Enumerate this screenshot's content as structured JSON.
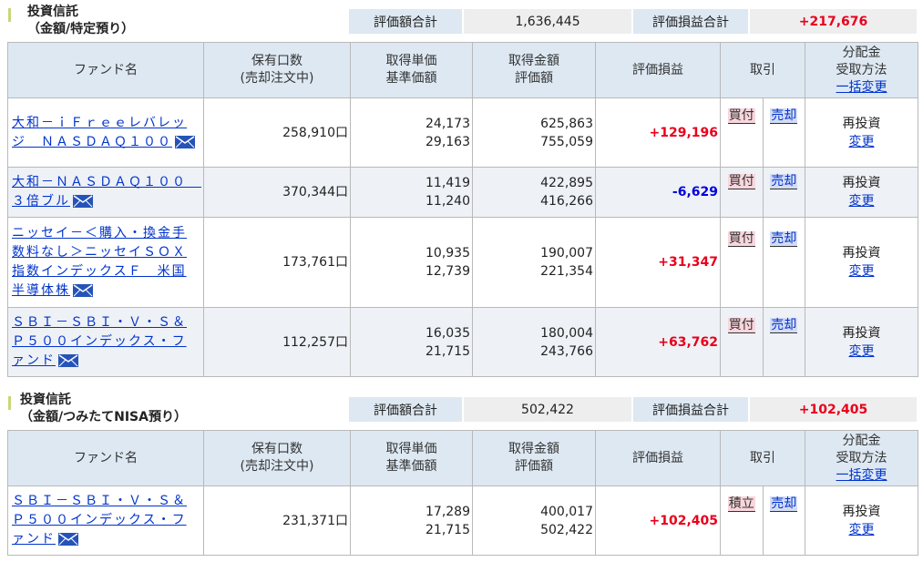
{
  "sections": [
    {
      "title": "投資信託",
      "subtitle": "（金額/特定預り）",
      "summary": {
        "eval_label": "評価額合計",
        "eval_value": "1,636,445",
        "gain_label": "評価損益合計",
        "gain_value": "+217,676"
      },
      "headers": {
        "fund": "ファンド名",
        "units_1": "保有口数",
        "units_2": "(売却注文中)",
        "price_1": "取得単価",
        "price_2": "基準価額",
        "amount_1": "取得金額",
        "amount_2": "評価額",
        "gain": "評価損益",
        "trade": "取引",
        "dist_1": "分配金",
        "dist_2": "受取方法",
        "dist_3": "一括変更"
      },
      "rows": [
        {
          "name": "大和－ｉＦｒｅｅレバレッジ　ＮＡＳＤＡＱ１００",
          "units": "258,910口",
          "cost_price": "24,173",
          "base_price": "29,163",
          "cost_amount": "625,863",
          "eval_amount": "755,059",
          "gain": "+129,196",
          "buy": "買付",
          "sell": "売却",
          "method": "再投資",
          "change": "変更"
        },
        {
          "name": "大和－ＮＡＳＤＡＱ１００　３倍ブル",
          "units": "370,344口",
          "cost_price": "11,419",
          "base_price": "11,240",
          "cost_amount": "422,895",
          "eval_amount": "416,266",
          "gain": "-6,629",
          "buy": "買付",
          "sell": "売却",
          "method": "再投資",
          "change": "変更"
        },
        {
          "name": "ニッセイ－＜購入・換金手数料なし＞ニッセイＳＯＸ指数インデックスＦ　米国半導体株",
          "units": "173,761口",
          "cost_price": "10,935",
          "base_price": "12,739",
          "cost_amount": "190,007",
          "eval_amount": "221,354",
          "gain": "+31,347",
          "buy": "買付",
          "sell": "売却",
          "method": "再投資",
          "change": "変更"
        },
        {
          "name": "ＳＢＩ－ＳＢＩ・Ｖ・Ｓ＆Ｐ５００インデックス・ファンド",
          "units": "112,257口",
          "cost_price": "16,035",
          "base_price": "21,715",
          "cost_amount": "180,004",
          "eval_amount": "243,766",
          "gain": "+63,762",
          "buy": "買付",
          "sell": "売却",
          "method": "再投資",
          "change": "変更"
        }
      ]
    },
    {
      "title": "投資信託",
      "subtitle": "（金額/つみたてNISA預り）",
      "summary": {
        "eval_label": "評価額合計",
        "eval_value": "502,422",
        "gain_label": "評価損益合計",
        "gain_value": "+102,405"
      },
      "headers": {
        "fund": "ファンド名",
        "units_1": "保有口数",
        "units_2": "(売却注文中)",
        "price_1": "取得単価",
        "price_2": "基準価額",
        "amount_1": "取得金額",
        "amount_2": "評価額",
        "gain": "評価損益",
        "trade": "取引",
        "dist_1": "分配金",
        "dist_2": "受取方法",
        "dist_3": "一括変更"
      },
      "rows": [
        {
          "name": "ＳＢＩ－ＳＢＩ・Ｖ・Ｓ＆Ｐ５００インデックス・ファンド",
          "units": "231,371口",
          "cost_price": "17,289",
          "base_price": "21,715",
          "cost_amount": "400,017",
          "eval_amount": "502,422",
          "gain": "+102,405",
          "buy": "積立",
          "sell": "売却",
          "method": "再投資",
          "change": "変更"
        }
      ]
    }
  ],
  "icons": {
    "mail": "mail-icon"
  },
  "colors": {
    "positive": "#e8001c",
    "negative": "#0000dd",
    "header_bg": "#dde8f2",
    "link": "#0033cc"
  }
}
